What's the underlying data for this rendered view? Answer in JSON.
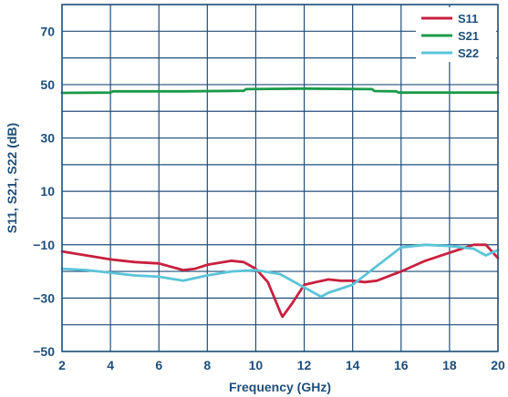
{
  "chart_data": {
    "type": "line",
    "xlabel": "Frequency (GHz)",
    "ylabel": "S11, S21, S22 (dB)",
    "xlim": [
      2,
      20
    ],
    "ylim": [
      -50,
      80
    ],
    "x_ticks": [
      2,
      4,
      6,
      8,
      10,
      12,
      14,
      16,
      18,
      20
    ],
    "y_ticks": [
      70,
      50,
      30,
      10,
      -10,
      -30,
      -50
    ],
    "y_tick_labels": [
      "70",
      "50",
      "30",
      "10",
      "−10",
      "−30",
      "−50"
    ],
    "legend_position": "top-right",
    "series": [
      {
        "name": "S11",
        "color": "#c8203f",
        "points": [
          [
            2,
            -12.5
          ],
          [
            3,
            -14
          ],
          [
            4,
            -15.5
          ],
          [
            5,
            -16.5
          ],
          [
            6,
            -17
          ],
          [
            7,
            -19.5
          ],
          [
            7.5,
            -19
          ],
          [
            8,
            -17.5
          ],
          [
            9,
            -16
          ],
          [
            9.5,
            -16.5
          ],
          [
            10,
            -19
          ],
          [
            10.5,
            -24
          ],
          [
            11,
            -35
          ],
          [
            11.1,
            -37
          ],
          [
            11.5,
            -32
          ],
          [
            12,
            -25
          ],
          [
            12.5,
            -24
          ],
          [
            13,
            -23
          ],
          [
            13.5,
            -23.5
          ],
          [
            14,
            -23.5
          ],
          [
            14.5,
            -24
          ],
          [
            15,
            -23.5
          ],
          [
            16,
            -20
          ],
          [
            17,
            -16
          ],
          [
            18,
            -13
          ],
          [
            19,
            -10
          ],
          [
            19.5,
            -10
          ],
          [
            20,
            -15
          ]
        ]
      },
      {
        "name": "S21",
        "color": "#1a9a4a",
        "points": [
          [
            2,
            46.9
          ],
          [
            4,
            47
          ],
          [
            4.1,
            47.5
          ],
          [
            7,
            47.5
          ],
          [
            9.5,
            47.7
          ],
          [
            9.6,
            48.3
          ],
          [
            12,
            48.5
          ],
          [
            14.8,
            48.3
          ],
          [
            14.9,
            47.6
          ],
          [
            15.8,
            47.5
          ],
          [
            15.9,
            47
          ],
          [
            20,
            47
          ]
        ]
      },
      {
        "name": "S22",
        "color": "#5bc4d8",
        "points": [
          [
            2,
            -19
          ],
          [
            3,
            -19.5
          ],
          [
            4,
            -20.5
          ],
          [
            5,
            -21.5
          ],
          [
            6,
            -22
          ],
          [
            7,
            -23.5
          ],
          [
            8,
            -21.5
          ],
          [
            9,
            -20
          ],
          [
            10,
            -19.5
          ],
          [
            11,
            -21
          ],
          [
            12,
            -26
          ],
          [
            12.7,
            -29.5
          ],
          [
            13,
            -28
          ],
          [
            14,
            -25
          ],
          [
            15,
            -18
          ],
          [
            16,
            -11
          ],
          [
            17,
            -10
          ],
          [
            18,
            -10.5
          ],
          [
            19,
            -11.5
          ],
          [
            19.5,
            -14
          ],
          [
            20,
            -12
          ]
        ]
      }
    ]
  }
}
